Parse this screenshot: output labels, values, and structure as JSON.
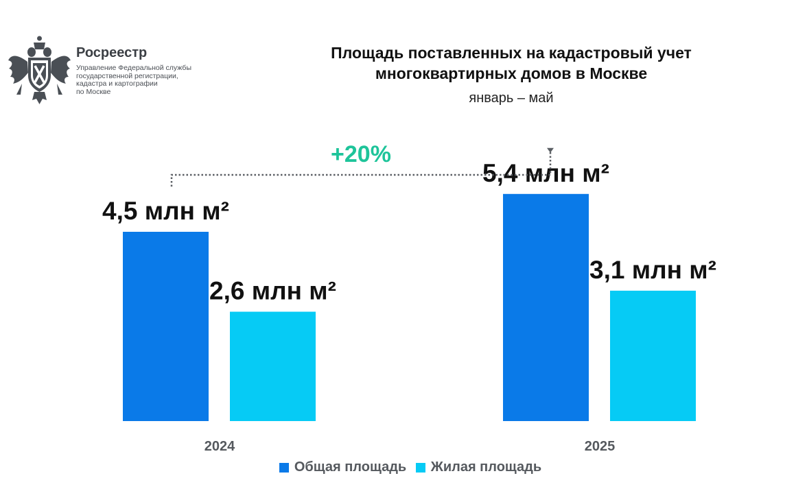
{
  "header": {
    "org_name": "Росреестр",
    "org_sub": [
      "Управление Федеральной службы",
      "государственной регистрации,",
      "кадастра и картографии",
      "по Москве"
    ],
    "title_line1": "Площадь поставленных на кадастровый учет",
    "title_line2": "многоквартирных домов в Москве",
    "subtitle": "январь – май"
  },
  "colors": {
    "total": "#0a7ae8",
    "living": "#06cbf5",
    "growth": "#1ec49a",
    "logo": "#4a4f55"
  },
  "chart_data": {
    "type": "bar",
    "title": "Площадь поставленных на кадастровый учет многоквартирных домов в Москве",
    "subtitle": "январь – май",
    "categories": [
      "2024",
      "2025"
    ],
    "series": [
      {
        "name": "Общая площадь",
        "values": [
          4.5,
          5.4
        ],
        "labels": [
          "4,5 млн м²",
          "5,4 млн м²"
        ]
      },
      {
        "name": "Жилая площадь",
        "values": [
          2.6,
          3.1
        ],
        "labels": [
          "2,6 млн м²",
          "3,1 млн м²"
        ]
      }
    ],
    "annotation": "+20%",
    "unit": "млн м²",
    "ylim": [
      0,
      7.5
    ],
    "legend_position": "bottom"
  }
}
